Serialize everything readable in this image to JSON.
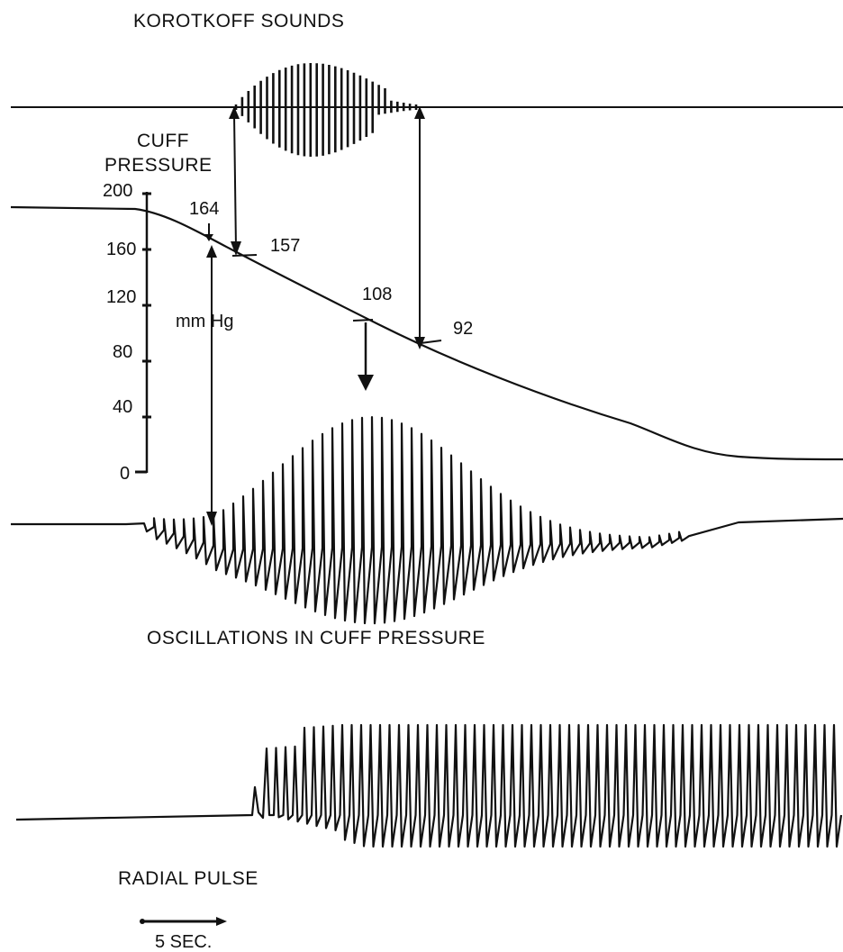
{
  "titles": {
    "korotkoff": "KOROTKOFF SOUNDS",
    "cuff_pressure_line1": "CUFF",
    "cuff_pressure_line2": "PRESSURE",
    "oscillations": "OSCILLATIONS IN CUFF PRESSURE",
    "radial_pulse": "RADIAL PULSE"
  },
  "pressure_axis": {
    "unit": "mm Hg",
    "ticks": [
      "200",
      "160",
      "120",
      "80",
      "40",
      "0"
    ]
  },
  "pressure_markers": {
    "onset_oscillations": "164",
    "systolic_korotkoff": "157",
    "max_oscillation": "108",
    "diastolic_korotkoff": "92"
  },
  "scale_bar": {
    "label": "5 SEC."
  },
  "colors": {
    "ink": "#111111",
    "background": "#ffffff"
  }
}
